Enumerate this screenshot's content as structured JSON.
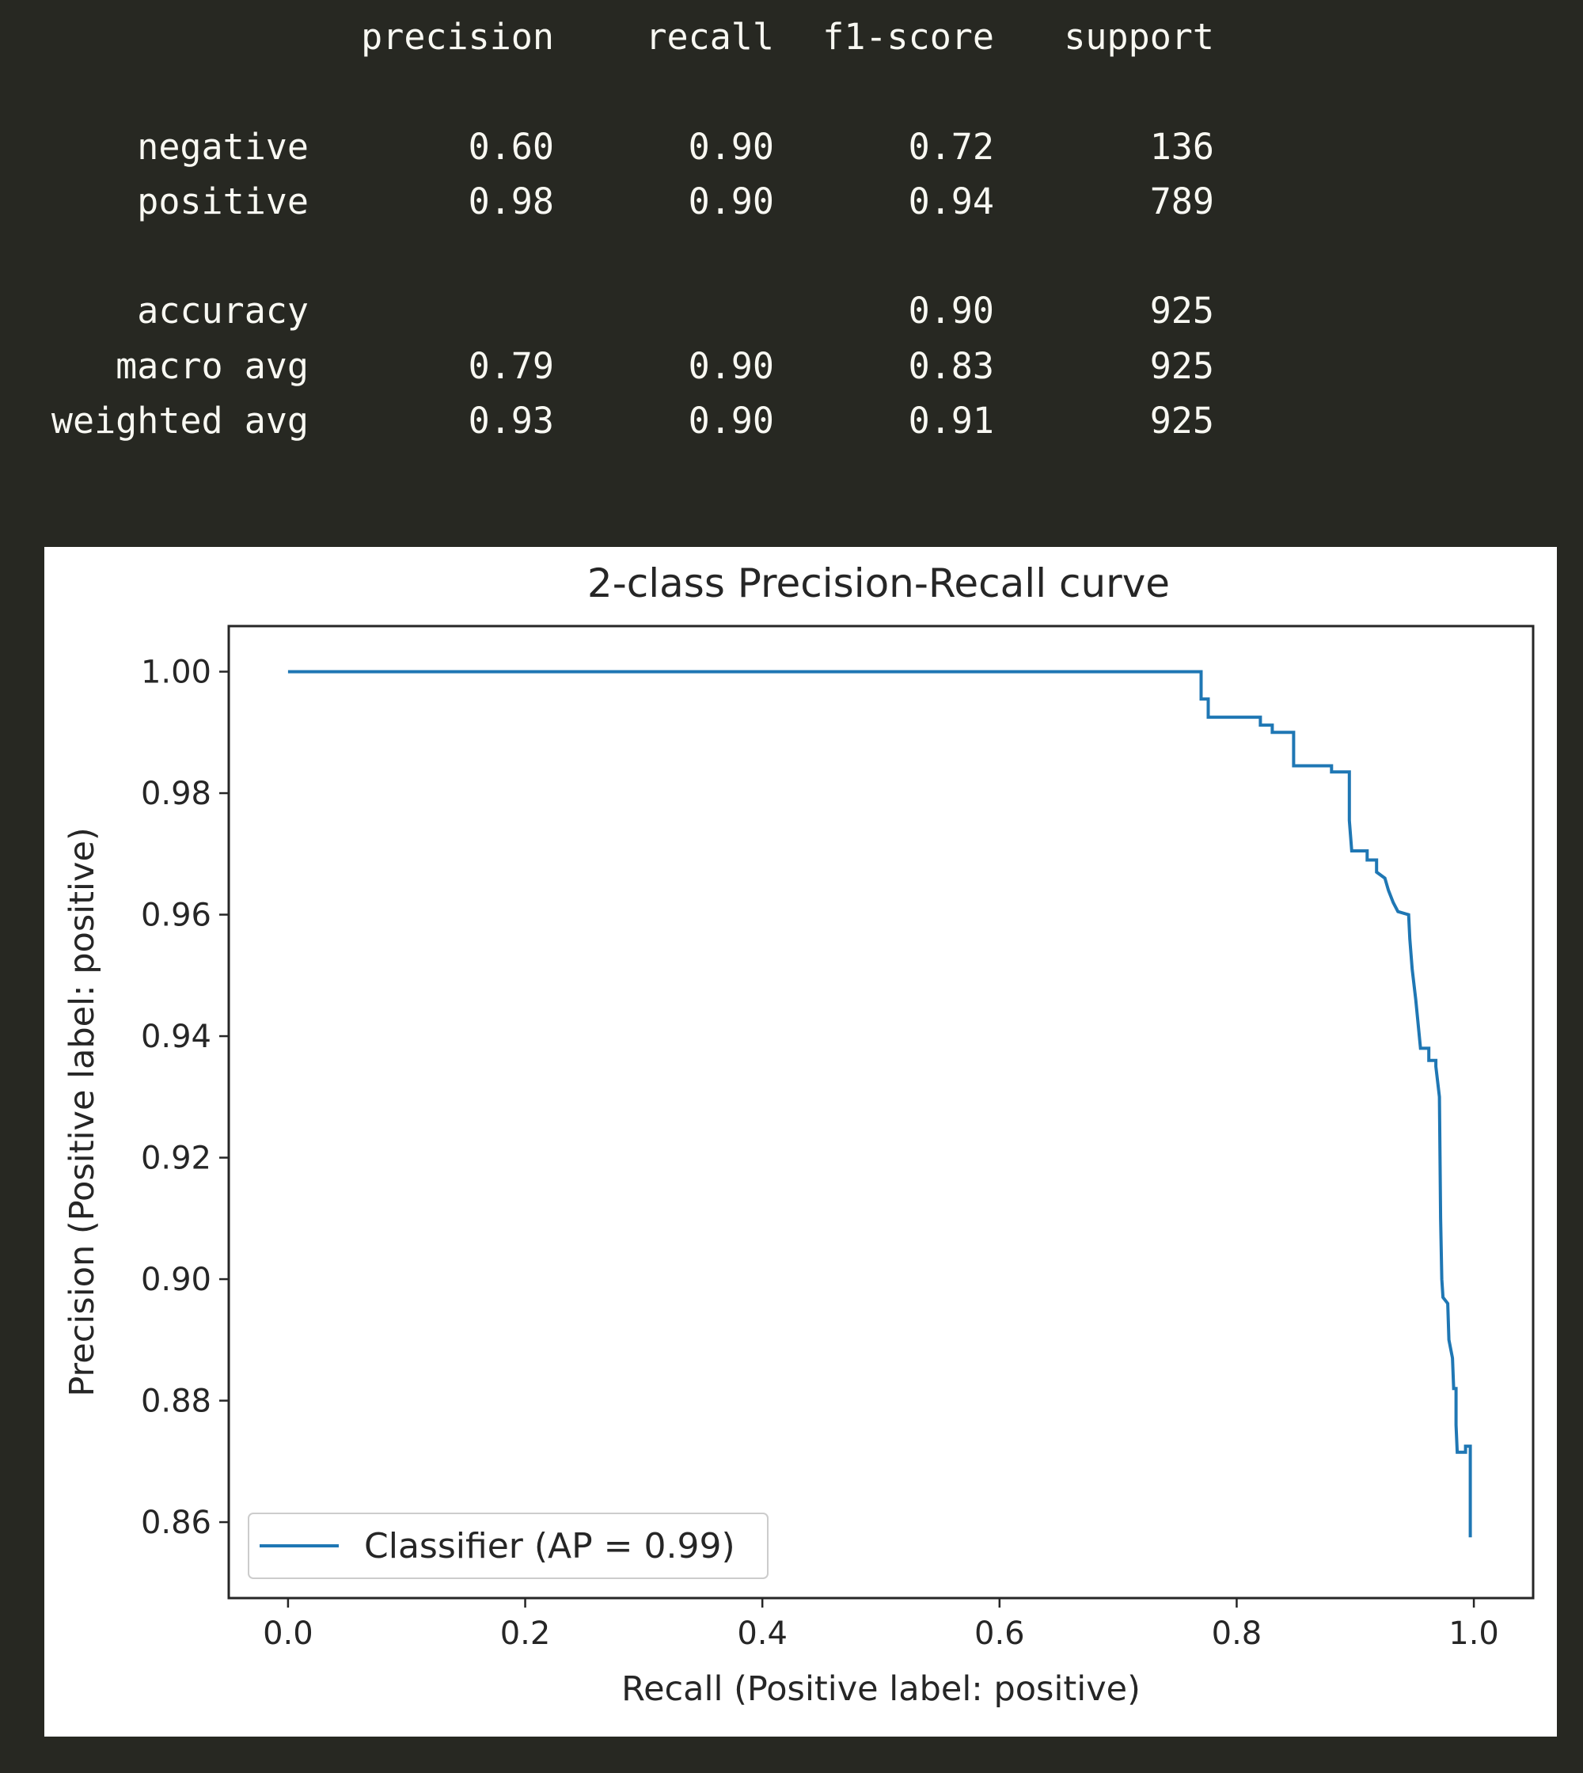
{
  "report": {
    "headers": [
      "precision",
      "recall",
      "f1-score",
      "support"
    ],
    "rows": [
      {
        "label": "negative",
        "precision": "0.60",
        "recall": "0.90",
        "f1": "0.72",
        "support": "136"
      },
      {
        "label": "positive",
        "precision": "0.98",
        "recall": "0.90",
        "f1": "0.94",
        "support": "789"
      },
      {
        "label": "accuracy",
        "precision": "",
        "recall": "",
        "f1": "0.90",
        "support": "925"
      },
      {
        "label": "macro avg",
        "precision": "0.79",
        "recall": "0.90",
        "f1": "0.83",
        "support": "925"
      },
      {
        "label": "weighted avg",
        "precision": "0.93",
        "recall": "0.90",
        "f1": "0.91",
        "support": "925"
      }
    ]
  },
  "chart_data": {
    "type": "line",
    "title": "2-class Precision-Recall curve",
    "xlabel": "Recall (Positive label: positive)",
    "ylabel": "Precision (Positive label: positive)",
    "xlim": [
      -0.05,
      1.05
    ],
    "ylim": [
      0.8475,
      1.0075
    ],
    "xticks": [
      "0.0",
      "0.2",
      "0.4",
      "0.6",
      "0.8",
      "1.0"
    ],
    "yticks": [
      "0.86",
      "0.88",
      "0.90",
      "0.92",
      "0.94",
      "0.96",
      "0.98",
      "1.00"
    ],
    "grid": false,
    "legend_position": "lower-left",
    "colors": {
      "series": "#1f77b4"
    },
    "series": [
      {
        "name": "Classifier (AP = 0.99)",
        "points": [
          [
            0.0,
            1.0
          ],
          [
            0.77,
            1.0
          ],
          [
            0.77,
            0.9955
          ],
          [
            0.776,
            0.9955
          ],
          [
            0.776,
            0.9925
          ],
          [
            0.82,
            0.9925
          ],
          [
            0.82,
            0.9912
          ],
          [
            0.83,
            0.9912
          ],
          [
            0.83,
            0.99
          ],
          [
            0.848,
            0.99
          ],
          [
            0.848,
            0.9845
          ],
          [
            0.88,
            0.9845
          ],
          [
            0.88,
            0.9835
          ],
          [
            0.895,
            0.9835
          ],
          [
            0.895,
            0.9755
          ],
          [
            0.897,
            0.9705
          ],
          [
            0.91,
            0.9705
          ],
          [
            0.91,
            0.969
          ],
          [
            0.918,
            0.969
          ],
          [
            0.918,
            0.967
          ],
          [
            0.925,
            0.966
          ],
          [
            0.928,
            0.964
          ],
          [
            0.932,
            0.962
          ],
          [
            0.936,
            0.9605
          ],
          [
            0.945,
            0.96
          ],
          [
            0.946,
            0.956
          ],
          [
            0.948,
            0.951
          ],
          [
            0.951,
            0.946
          ],
          [
            0.954,
            0.94
          ],
          [
            0.955,
            0.938
          ],
          [
            0.962,
            0.938
          ],
          [
            0.962,
            0.936
          ],
          [
            0.968,
            0.936
          ],
          [
            0.968,
            0.935
          ],
          [
            0.971,
            0.93
          ],
          [
            0.972,
            0.91
          ],
          [
            0.973,
            0.9
          ],
          [
            0.974,
            0.897
          ],
          [
            0.978,
            0.896
          ],
          [
            0.979,
            0.89
          ],
          [
            0.982,
            0.887
          ],
          [
            0.983,
            0.882
          ],
          [
            0.985,
            0.882
          ],
          [
            0.985,
            0.876
          ],
          [
            0.986,
            0.8715
          ],
          [
            0.993,
            0.8715
          ],
          [
            0.993,
            0.8725
          ],
          [
            0.997,
            0.8725
          ],
          [
            0.997,
            0.8575
          ]
        ]
      }
    ]
  }
}
